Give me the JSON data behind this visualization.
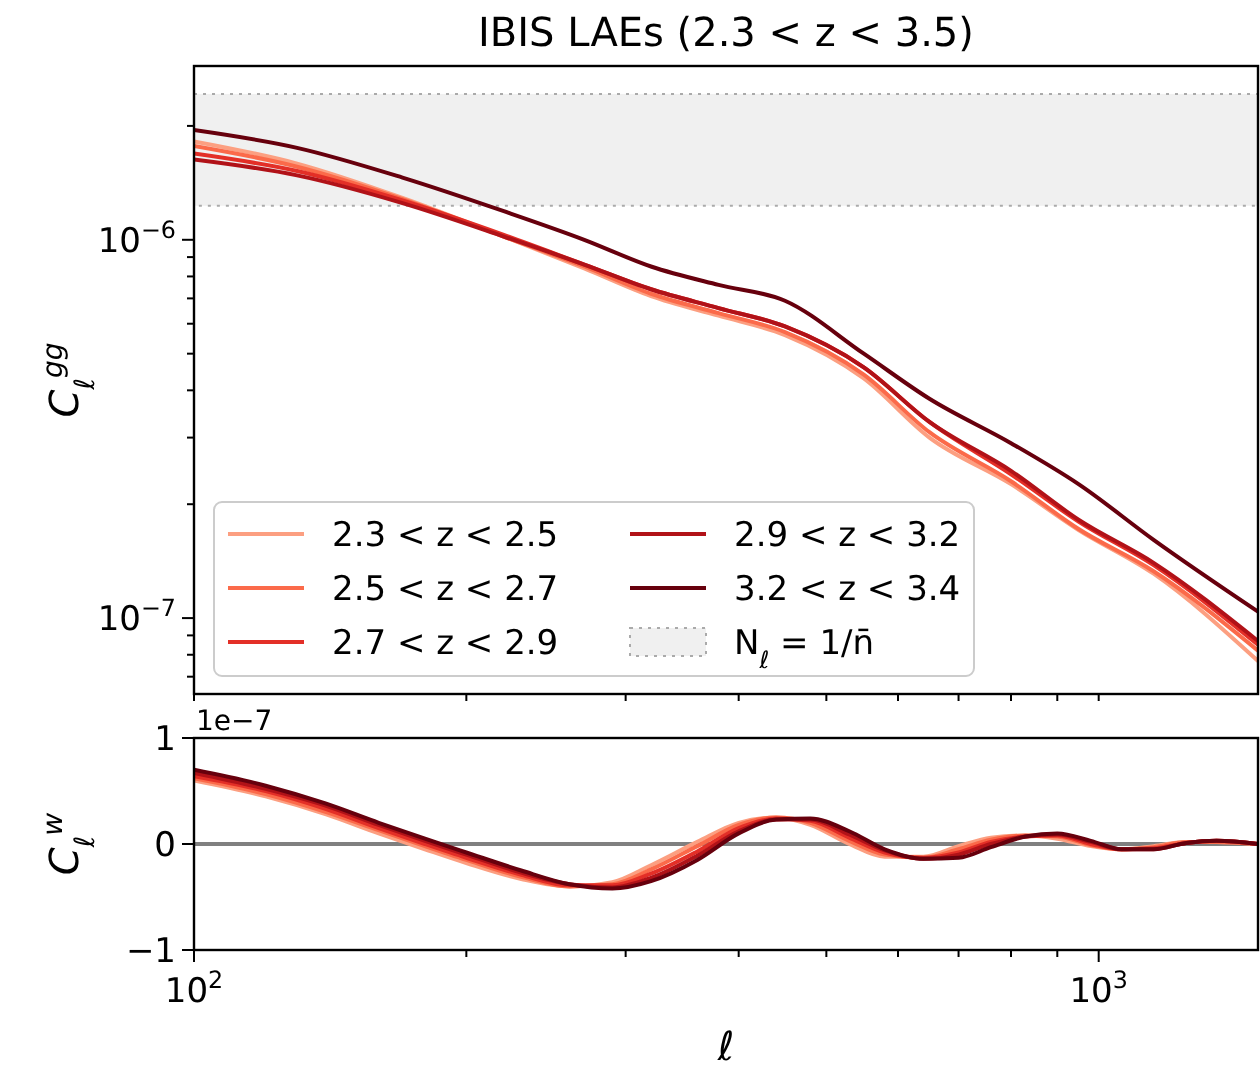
{
  "chart_data": [
    {
      "type": "line",
      "title": "IBIS LAEs (2.3 < z < 3.5)",
      "ylabel": "C$_{ℓ}$$^{gg}$",
      "log": "xy",
      "legend": "bottom left",
      "tick_labels": "y",
      "x": [
        100,
        130,
        170,
        220,
        270,
        320,
        380,
        450,
        550,
        650,
        800,
        950,
        1150,
        1500
      ],
      "xlim": [
        100,
        1500
      ],
      "xticks": [
        {
          "value": 100,
          "label": null
        },
        {
          "value": 200,
          "label": null
        },
        {
          "value": 300,
          "label": null
        },
        {
          "value": 400,
          "label": null
        },
        {
          "value": 500,
          "label": null
        },
        {
          "value": 600,
          "label": null
        },
        {
          "value": 700,
          "label": null
        },
        {
          "value": 800,
          "label": null
        },
        {
          "value": 900,
          "label": null
        },
        {
          "value": 1000,
          "label": null
        }
      ],
      "ylim": [
        6.3e-08,
        2.88e-06
      ],
      "yticks": [
        {
          "value": 7e-08,
          "label": null
        },
        {
          "value": 8e-08,
          "label": null
        },
        {
          "value": 9e-08,
          "label": null
        },
        {
          "value": 1e-07,
          "label": "10$^{−7}$"
        },
        {
          "value": 2e-07,
          "label": null
        },
        {
          "value": 3e-07,
          "label": null
        },
        {
          "value": 4e-07,
          "label": null
        },
        {
          "value": 5e-07,
          "label": null
        },
        {
          "value": 6e-07,
          "label": null
        },
        {
          "value": 7e-07,
          "label": null
        },
        {
          "value": 8e-07,
          "label": null
        },
        {
          "value": 9e-07,
          "label": null
        },
        {
          "value": 1e-06,
          "label": "10$^{−6}$"
        },
        {
          "value": 2e-06,
          "label": null
        }
      ],
      "bands": [
        {
          "axis": "y",
          "from": 1.23e-06,
          "to": 2.43e-06,
          "label": "N$_{ℓ}$ = 1/n̄",
          "color": "#f0f0f0"
        }
      ],
      "series": [
        {
          "name": "2.3 < z < 2.5",
          "color": "#fc9f81",
          "values": [
            1.82e-06,
            1.59e-06,
            1.29e-06,
            1.02e-06,
            8.4e-07,
            7.1e-07,
            6.3e-07,
            5.6e-07,
            4.3e-07,
            3e-07,
            2.26e-07,
            1.71e-07,
            1.31e-07,
            7.7e-08
          ]
        },
        {
          "name": "2.5 < z < 2.7",
          "color": "#fb6a4a",
          "values": [
            1.77e-06,
            1.56e-06,
            1.28e-06,
            1.02e-06,
            8.5e-07,
            7.2e-07,
            6.4e-07,
            5.7e-07,
            4.4e-07,
            3.1e-07,
            2.3e-07,
            1.72e-07,
            1.33e-07,
            8.2e-08
          ]
        },
        {
          "name": "2.7 < z < 2.9",
          "color": "#e32f27",
          "values": [
            1.69e-06,
            1.52e-06,
            1.27e-06,
            1.03e-06,
            8.6e-07,
            7.4e-07,
            6.6e-07,
            5.9e-07,
            4.6e-07,
            3.3e-07,
            2.4e-07,
            1.8e-07,
            1.38e-07,
            8.5e-08
          ]
        },
        {
          "name": "2.9 < z < 3.2",
          "color": "#b11218",
          "values": [
            1.63e-06,
            1.48e-06,
            1.25e-06,
            1.02e-06,
            8.6e-07,
            7.4e-07,
            6.6e-07,
            5.9e-07,
            4.6e-07,
            3.3e-07,
            2.45e-07,
            1.82e-07,
            1.4e-07,
            8.7e-08
          ]
        },
        {
          "name": "3.2 < z < 3.4",
          "color": "#67000d",
          "values": [
            1.95e-06,
            1.75e-06,
            1.46e-06,
            1.19e-06,
            1e-06,
            8.5e-07,
            7.6e-07,
            6.9e-07,
            5e-07,
            3.8e-07,
            2.9e-07,
            2.26e-07,
            1.61e-07,
            1.04e-07
          ]
        }
      ]
    },
    {
      "type": "line",
      "ylabel": "C$_{ℓ}$$^{w}$",
      "xlabel": "ℓ",
      "log": "x",
      "annotations": [
        "1e−7"
      ],
      "x": [
        100,
        120,
        140,
        160,
        180,
        200,
        230,
        260,
        290,
        320,
        360,
        400,
        440,
        480,
        530,
        580,
        640,
        700,
        760,
        830,
        900,
        980,
        1060,
        1150,
        1250,
        1350,
        1500
      ],
      "xlim": [
        100,
        1500
      ],
      "xticks": [
        {
          "value": 100,
          "label": "10$^{2}$"
        },
        {
          "value": 200,
          "label": null
        },
        {
          "value": 300,
          "label": null
        },
        {
          "value": 400,
          "label": null
        },
        {
          "value": 500,
          "label": null
        },
        {
          "value": 600,
          "label": null
        },
        {
          "value": 700,
          "label": null
        },
        {
          "value": 800,
          "label": null
        },
        {
          "value": 900,
          "label": null
        },
        {
          "value": 1000,
          "label": "10$^{3}$"
        }
      ],
      "ylim": [
        -1,
        1
      ],
      "yticks": [
        {
          "value": -1,
          "label": "−1"
        },
        0,
        1
      ],
      "ref_lines": [
        {
          "axis": "y",
          "value": 0,
          "color": "#808080"
        }
      ],
      "series": [
        {
          "color": "#fc9f81",
          "values": [
            0.6,
            0.45,
            0.28,
            0.1,
            -0.05,
            -0.18,
            -0.33,
            -0.4,
            -0.36,
            -0.2,
            0.02,
            0.2,
            0.25,
            0.18,
            0,
            -0.12,
            -0.12,
            -0.02,
            0.06,
            0.08,
            0.05,
            -0.02,
            -0.05,
            -0.02,
            0.02,
            0.02,
            0
          ]
        },
        {
          "color": "#fb6a4a",
          "values": [
            0.62,
            0.47,
            0.3,
            0.13,
            -0.02,
            -0.15,
            -0.31,
            -0.4,
            -0.38,
            -0.24,
            -0.02,
            0.18,
            0.25,
            0.2,
            0.03,
            -0.1,
            -0.13,
            -0.05,
            0.04,
            0.08,
            0.07,
            -0.01,
            -0.05,
            -0.03,
            0.02,
            0.02,
            0
          ]
        },
        {
          "color": "#e32f27",
          "values": [
            0.64,
            0.5,
            0.33,
            0.15,
            0,
            -0.13,
            -0.29,
            -0.39,
            -0.39,
            -0.28,
            -0.07,
            0.15,
            0.24,
            0.22,
            0.06,
            -0.08,
            -0.13,
            -0.08,
            0.02,
            0.07,
            0.08,
            0,
            -0.05,
            -0.04,
            0.01,
            0.03,
            0
          ]
        },
        {
          "color": "#b11218",
          "values": [
            0.67,
            0.52,
            0.36,
            0.18,
            0.03,
            -0.1,
            -0.27,
            -0.38,
            -0.41,
            -0.32,
            -0.11,
            0.12,
            0.23,
            0.23,
            0.09,
            -0.06,
            -0.14,
            -0.1,
            0,
            0.07,
            0.09,
            0.02,
            -0.05,
            -0.05,
            0.01,
            0.03,
            0
          ]
        },
        {
          "color": "#67000d",
          "values": [
            0.7,
            0.55,
            0.38,
            0.2,
            0.05,
            -0.08,
            -0.25,
            -0.38,
            -0.42,
            -0.35,
            -0.15,
            0.1,
            0.23,
            0.24,
            0.12,
            -0.05,
            -0.14,
            -0.13,
            -0.03,
            0.07,
            0.1,
            0.03,
            -0.05,
            -0.05,
            0.01,
            0.03,
            0
          ]
        }
      ]
    }
  ]
}
